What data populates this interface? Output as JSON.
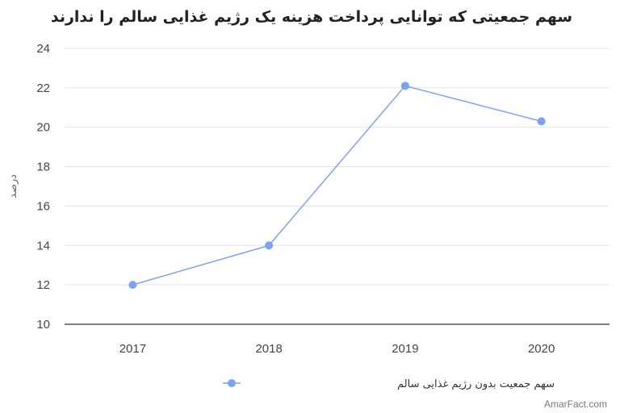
{
  "chart_data": {
    "type": "line",
    "title": "سهم جمعیتی که توانایی پرداخت هزینه یک رژیم غذایی سالم را ندارند",
    "xlabel": "",
    "ylabel": "درصد",
    "categories": [
      "2017",
      "2018",
      "2019",
      "2020"
    ],
    "ylim": [
      10,
      24
    ],
    "yticks": [
      10,
      12,
      14,
      16,
      18,
      20,
      22,
      24
    ],
    "grid": true,
    "legend_position": "bottom",
    "series": [
      {
        "name": "سهم جمعیت بدون رژیم غذایی سالم",
        "values": [
          12.0,
          14.0,
          22.1,
          20.3
        ],
        "color": "#7da2f0"
      }
    ],
    "source": "AmarFact.com"
  }
}
